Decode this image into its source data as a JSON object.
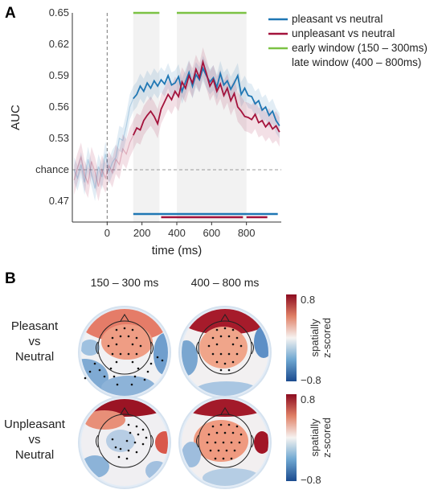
{
  "panels": {
    "a": "A",
    "b": "B"
  },
  "chart_data": {
    "type": "line",
    "title": "",
    "xlabel": "time (ms)",
    "ylabel": "AUC",
    "xlim": [
      -200,
      1000
    ],
    "ylim": [
      0.45,
      0.65
    ],
    "x_ticks": [
      0,
      200,
      400,
      600,
      800
    ],
    "y_ticks": [
      0.47,
      0.5,
      0.53,
      0.56,
      0.59,
      0.62,
      0.65
    ],
    "y_tick_labels": [
      "0.47",
      "chance",
      "0.53",
      "0.56",
      "0.59",
      "0.62",
      "0.65"
    ],
    "chance_level": 0.5,
    "stimulus_onset": 0,
    "colors": {
      "pleasant": "#1f77b4",
      "unpleasant": "#a4133c",
      "windows": "#7cc244"
    },
    "series": [
      {
        "name": "pleasant vs neutral",
        "color": "#1f77b4",
        "x": [
          -190,
          -170,
          -150,
          -130,
          -110,
          -90,
          -70,
          -50,
          -30,
          -10,
          10,
          30,
          50,
          70,
          90,
          110,
          130,
          150,
          170,
          190,
          210,
          230,
          250,
          270,
          290,
          310,
          330,
          350,
          370,
          390,
          410,
          430,
          450,
          470,
          490,
          510,
          530,
          550,
          570,
          590,
          610,
          630,
          650,
          670,
          690,
          710,
          730,
          750,
          770,
          790,
          810,
          830,
          850,
          870,
          890,
          910,
          930,
          950,
          970,
          990
        ],
        "values": [
          0.5,
          0.492,
          0.505,
          0.488,
          0.51,
          0.496,
          0.482,
          0.503,
          0.493,
          0.515,
          0.498,
          0.507,
          0.512,
          0.53,
          0.528,
          0.542,
          0.56,
          0.568,
          0.572,
          0.58,
          0.575,
          0.583,
          0.578,
          0.585,
          0.58,
          0.586,
          0.582,
          0.59,
          0.581,
          0.583,
          0.589,
          0.575,
          0.584,
          0.593,
          0.58,
          0.591,
          0.586,
          0.597,
          0.59,
          0.584,
          0.588,
          0.579,
          0.592,
          0.581,
          0.585,
          0.577,
          0.583,
          0.59,
          0.572,
          0.578,
          0.571,
          0.57,
          0.563,
          0.566,
          0.557,
          0.56,
          0.552,
          0.556,
          0.547,
          0.542
        ],
        "error": 0.012
      },
      {
        "name": "unpleasant vs neutral",
        "color": "#a4133c",
        "x": [
          -190,
          -170,
          -150,
          -130,
          -110,
          -90,
          -70,
          -50,
          -30,
          -10,
          10,
          30,
          50,
          70,
          90,
          110,
          130,
          150,
          170,
          190,
          210,
          230,
          250,
          270,
          290,
          310,
          330,
          350,
          370,
          390,
          410,
          430,
          450,
          470,
          490,
          510,
          530,
          550,
          570,
          590,
          610,
          630,
          650,
          670,
          690,
          710,
          730,
          750,
          770,
          790,
          810,
          830,
          850,
          870,
          890,
          910,
          930,
          950,
          970,
          990
        ],
        "values": [
          0.49,
          0.502,
          0.512,
          0.495,
          0.487,
          0.508,
          0.498,
          0.484,
          0.5,
          0.492,
          0.504,
          0.497,
          0.51,
          0.505,
          0.52,
          0.515,
          0.526,
          0.533,
          0.54,
          0.538,
          0.547,
          0.552,
          0.556,
          0.551,
          0.544,
          0.558,
          0.565,
          0.572,
          0.567,
          0.575,
          0.57,
          0.584,
          0.578,
          0.59,
          0.583,
          0.596,
          0.588,
          0.603,
          0.592,
          0.58,
          0.586,
          0.575,
          0.582,
          0.571,
          0.578,
          0.566,
          0.573,
          0.56,
          0.556,
          0.551,
          0.55,
          0.548,
          0.553,
          0.545,
          0.547,
          0.541,
          0.545,
          0.539,
          0.542,
          0.536
        ],
        "error": 0.014
      }
    ],
    "windows": [
      {
        "name": "early window (150 – 300ms)",
        "range": [
          150,
          300
        ]
      },
      {
        "name": "late window (400 – 800ms)",
        "range": [
          400,
          800
        ]
      }
    ],
    "significance": {
      "pleasant": [
        [
          150,
          980
        ]
      ],
      "unpleasant": [
        [
          310,
          780
        ],
        [
          800,
          920
        ]
      ]
    },
    "legend_position": "top-right"
  },
  "topo": {
    "columns": [
      "150 – 300 ms",
      "400 – 800 ms"
    ],
    "rows": [
      {
        "label": [
          "Pleasant",
          "vs",
          "Neutral"
        ]
      },
      {
        "label": [
          "Unpleasant",
          "vs",
          "Neutral"
        ]
      }
    ],
    "colorbar": {
      "max_label": "0.8",
      "min_label": "−0.8",
      "label": [
        "spatially",
        "z-scored"
      ]
    }
  }
}
